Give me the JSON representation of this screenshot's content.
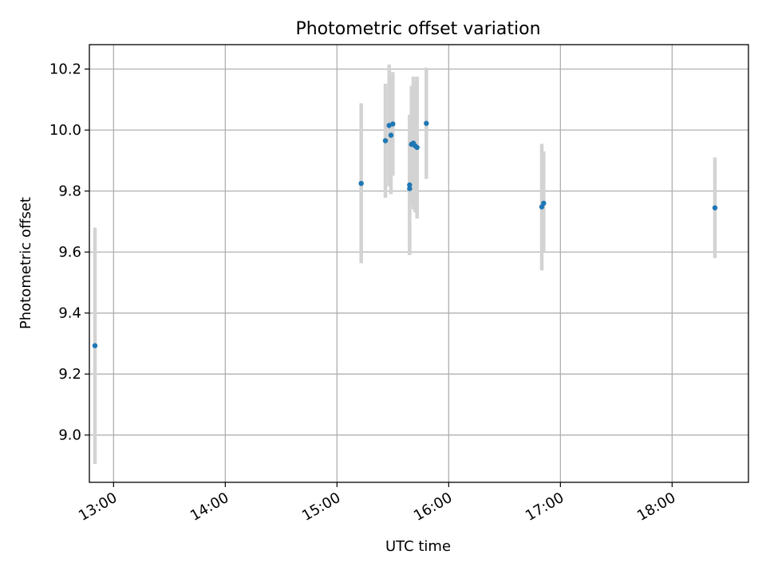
{
  "chart_data": {
    "type": "scatter",
    "title": "Photometric offset variation",
    "xlabel": "UTC time",
    "ylabel": "Photometric offset",
    "xlim": [
      "12:47",
      "18:41"
    ],
    "ylim": [
      8.845,
      10.28
    ],
    "grid": true,
    "x_ticks": [
      "13:00",
      "14:00",
      "15:00",
      "16:00",
      "17:00",
      "18:00"
    ],
    "y_ticks": [
      "9.0",
      "9.2",
      "9.4",
      "9.6",
      "9.8",
      "10.0",
      "10.2"
    ],
    "errorbar_color": "#d3d3d3",
    "point_color": "#1f77b4",
    "points": [
      {
        "x": "12:50",
        "y": 9.293,
        "lo": 8.905,
        "hi": 9.68
      },
      {
        "x": "15:13",
        "y": 9.825,
        "lo": 9.563,
        "hi": 10.088
      },
      {
        "x": "15:26",
        "y": 9.965,
        "lo": 9.778,
        "hi": 10.152
      },
      {
        "x": "15:28",
        "y": 10.015,
        "lo": 9.815,
        "hi": 10.215
      },
      {
        "x": "15:29",
        "y": 9.983,
        "lo": 9.79,
        "hi": 10.175
      },
      {
        "x": "15:30",
        "y": 10.02,
        "lo": 9.85,
        "hi": 10.19
      },
      {
        "x": "15:39",
        "y": 9.82,
        "lo": 9.59,
        "hi": 10.05
      },
      {
        "x": "15:39",
        "y": 9.808,
        "lo": 9.62,
        "hi": 9.99
      },
      {
        "x": "15:40",
        "y": 9.953,
        "lo": 9.76,
        "hi": 10.145
      },
      {
        "x": "15:41",
        "y": 9.957,
        "lo": 9.74,
        "hi": 10.175
      },
      {
        "x": "15:42",
        "y": 9.948,
        "lo": 9.73,
        "hi": 10.16
      },
      {
        "x": "15:43",
        "y": 9.943,
        "lo": 9.71,
        "hi": 10.175
      },
      {
        "x": "15:48",
        "y": 10.022,
        "lo": 9.84,
        "hi": 10.205
      },
      {
        "x": "16:50",
        "y": 9.748,
        "lo": 9.54,
        "hi": 9.955
      },
      {
        "x": "16:51",
        "y": 9.76,
        "lo": 9.6,
        "hi": 9.93
      },
      {
        "x": "18:23",
        "y": 9.745,
        "lo": 9.58,
        "hi": 9.91
      }
    ]
  }
}
